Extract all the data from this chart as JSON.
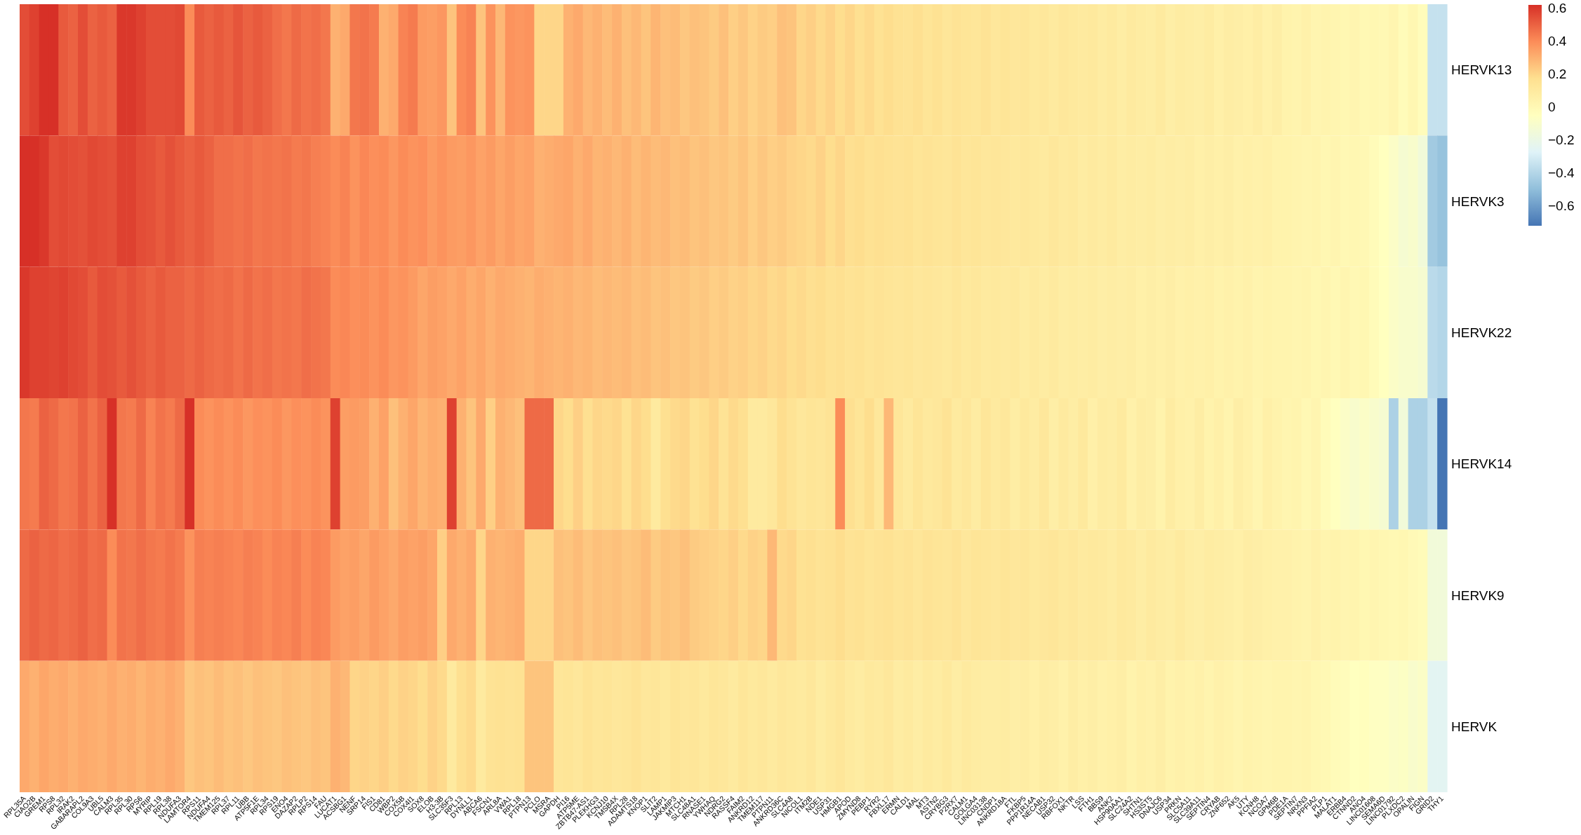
{
  "chart_data": {
    "type": "heatmap",
    "categories": [
      "RPL35A",
      "CIAO2B",
      "GREM1",
      "RPS8",
      "RPL32",
      "IRAK2",
      "GABARAPL2",
      "COL9A3",
      "UBL5",
      "CALM3",
      "RPL35",
      "RPL30",
      "RPS6",
      "MYRIP",
      "RPL19",
      "RPL38",
      "NDUFA3",
      "LAMTOR4",
      "RPS11",
      "NDUFA4",
      "TMEM125",
      "RPL37",
      "RPL11",
      "UBB",
      "ATP5F1E",
      "RPL34",
      "RPS19",
      "ENO4",
      "DAZAP2",
      "RPLP2",
      "RPS14",
      "FAU",
      "LUCAT1",
      "ACSBG1",
      "NENF",
      "SRP14",
      "FIS1",
      "CD81",
      "WBP2",
      "COX5B",
      "COX4I1",
      "SOX8",
      "ELOB",
      "H3-3B",
      "SLC35F3",
      "RPL13",
      "DYNLL1",
      "ABCA6",
      "FSCN1",
      "ARL8A",
      "VWA1",
      "RPL18",
      "PTPN13",
      "PCLO",
      "MSRA",
      "GAPDH",
      "PI16",
      "ATP5ME",
      "ZBTB47-AS1",
      "PLEKHG3",
      "KCNJ10",
      "TMSB4X",
      "RPL28",
      "ADAMTS18",
      "KNOP1",
      "SLIT2",
      "LAMP1",
      "JAKMIP3",
      "MTCH1",
      "SLC48A1",
      "RNASE1",
      "YWHAQ",
      "NDRG2",
      "RASSF4",
      "FAIM2",
      "ANKRD12",
      "TMEM117",
      "PTPN11",
      "ANKRD36C",
      "SLC4A8",
      "NICOL1",
      "ITM2B",
      "NDE1",
      "USP31",
      "HMGB1",
      "APOD",
      "ZMYND8",
      "PEBP1",
      "RYR2",
      "FBXL17",
      "ERMN",
      "CALD1",
      "MAL",
      "MT3",
      "ASTN2",
      "CRYBG3",
      "P2RX7",
      "CALM1",
      "GOLGA4",
      "LINC03138",
      "CNDP1",
      "ANKRD18A",
      "FTL",
      "FKBP5",
      "PPP1R14A",
      "NECAB1",
      "USP32",
      "RBFOX1",
      "NKTR",
      "LSS",
      "FTH1",
      "BBS9",
      "ANK2",
      "HSP90AA1",
      "SLC24A2",
      "SHTN1",
      "HS3ST5",
      "DNAJC6",
      "USP34",
      "PRKN",
      "SLC5A11",
      "SLC39A11",
      "SEPTIN4",
      "CRYAB",
      "ZNF652",
      "AK5",
      "UTY",
      "KCNH8",
      "NCOA7",
      "GPM6B",
      "PDE1A",
      "SEPTIN7",
      "NRXN3",
      "PPFIA2",
      "PLP1",
      "MALAT1",
      "ERBB4",
      "CTNND2",
      "ANO4",
      "LINC01608",
      "SEMA6D",
      "LINC01792",
      "PLXDC2",
      "OPALIN",
      "FIGN",
      "GRID2",
      "THY1"
    ],
    "y_categories": [
      "HERVK13",
      "HERVK3",
      "HERVK22",
      "HERVK14",
      "HERVK9",
      "HERVK"
    ],
    "cells": [
      [
        0.55,
        0.58,
        0.62,
        0.62,
        0.52,
        0.5,
        0.55,
        0.5,
        0.52,
        0.5,
        0.6,
        0.6,
        0.58,
        0.55,
        0.55,
        0.55,
        0.56,
        0.4,
        0.52,
        0.5,
        0.52,
        0.5,
        0.53,
        0.5,
        0.52,
        0.5,
        0.47,
        0.45,
        0.48,
        0.46,
        0.47,
        0.45,
        0.3,
        0.32,
        0.45,
        0.46,
        0.44,
        0.3,
        0.32,
        0.42,
        0.44,
        0.36,
        0.35,
        0.37,
        0.25,
        0.4,
        0.42,
        0.25,
        0.38,
        0.28,
        0.38,
        0.37,
        0.38,
        0.2,
        0.2,
        0.2,
        0.3,
        0.32,
        0.28,
        0.3,
        0.27,
        0.3,
        0.26,
        0.28,
        0.25,
        0.29,
        0.26,
        0.27,
        0.24,
        0.26,
        0.25,
        0.23,
        0.26,
        0.22,
        0.24,
        0.21,
        0.23,
        0.22,
        0.26,
        0.25,
        0.2,
        0.22,
        0.19,
        0.21,
        0.18,
        0.2,
        0.17,
        0.19,
        0.16,
        0.18,
        0.16,
        0.15,
        0.17,
        0.14,
        0.16,
        0.13,
        0.15,
        0.14,
        0.13,
        0.15,
        0.12,
        0.14,
        0.12,
        0.13,
        0.11,
        0.12,
        0.1,
        0.12,
        0.11,
        0.1,
        0.11,
        0.09,
        0.1,
        0.08,
        0.1,
        0.09,
        0.08,
        0.1,
        0.07,
        0.09,
        0.08,
        0.07,
        0.09,
        0.06,
        0.08,
        0.07,
        0.06,
        0.08,
        0.05,
        0.07,
        0.04,
        0.03,
        0.05,
        0.02,
        0.03,
        0.02,
        0.01,
        0.02,
        0.0,
        0.01,
        0.0,
        0.02,
        -0.02,
        0.01,
        -0.03,
        -0.35,
        -0.35
      ],
      [
        0.62,
        0.62,
        0.6,
        0.55,
        0.56,
        0.55,
        0.54,
        0.56,
        0.55,
        0.54,
        0.58,
        0.58,
        0.55,
        0.54,
        0.52,
        0.54,
        0.52,
        0.5,
        0.52,
        0.5,
        0.47,
        0.47,
        0.46,
        0.47,
        0.45,
        0.46,
        0.45,
        0.46,
        0.44,
        0.45,
        0.43,
        0.42,
        0.4,
        0.42,
        0.38,
        0.41,
        0.39,
        0.4,
        0.37,
        0.4,
        0.38,
        0.39,
        0.36,
        0.38,
        0.36,
        0.35,
        0.37,
        0.34,
        0.36,
        0.33,
        0.35,
        0.33,
        0.34,
        0.3,
        0.31,
        0.32,
        0.33,
        0.3,
        0.32,
        0.29,
        0.3,
        0.28,
        0.3,
        0.27,
        0.29,
        0.27,
        0.28,
        0.26,
        0.27,
        0.25,
        0.26,
        0.24,
        0.25,
        0.23,
        0.25,
        0.22,
        0.24,
        0.22,
        0.23,
        0.21,
        0.2,
        0.19,
        0.21,
        0.18,
        0.2,
        0.17,
        0.18,
        0.16,
        0.17,
        0.16,
        0.15,
        0.16,
        0.14,
        0.15,
        0.14,
        0.13,
        0.15,
        0.13,
        0.14,
        0.12,
        0.13,
        0.12,
        0.11,
        0.12,
        0.11,
        0.1,
        0.12,
        0.1,
        0.11,
        0.09,
        0.1,
        0.09,
        0.1,
        0.08,
        0.09,
        0.08,
        0.09,
        0.07,
        0.08,
        0.07,
        0.08,
        0.06,
        0.07,
        0.06,
        0.07,
        0.05,
        0.06,
        0.05,
        0.06,
        0.04,
        0.04,
        0.03,
        0.02,
        0.03,
        0.01,
        0.02,
        0.0,
        0.01,
        0.0,
        -0.02,
        -0.05,
        -0.08,
        -0.12,
        -0.1,
        -0.15,
        -0.45,
        -0.48
      ],
      [
        0.6,
        0.58,
        0.58,
        0.57,
        0.58,
        0.56,
        0.55,
        0.52,
        0.55,
        0.54,
        0.52,
        0.54,
        0.52,
        0.5,
        0.52,
        0.5,
        0.5,
        0.48,
        0.5,
        0.48,
        0.47,
        0.48,
        0.46,
        0.48,
        0.46,
        0.47,
        0.45,
        0.46,
        0.45,
        0.47,
        0.46,
        0.45,
        0.4,
        0.41,
        0.39,
        0.4,
        0.38,
        0.4,
        0.37,
        0.38,
        0.36,
        0.33,
        0.35,
        0.34,
        0.32,
        0.34,
        0.31,
        0.33,
        0.3,
        0.32,
        0.31,
        0.3,
        0.29,
        0.31,
        0.3,
        0.29,
        0.3,
        0.28,
        0.29,
        0.27,
        0.28,
        0.27,
        0.28,
        0.26,
        0.27,
        0.25,
        0.26,
        0.24,
        0.25,
        0.23,
        0.24,
        0.22,
        0.23,
        0.21,
        0.22,
        0.2,
        0.21,
        0.19,
        0.2,
        0.18,
        0.19,
        0.17,
        0.18,
        0.16,
        0.17,
        0.15,
        0.16,
        0.14,
        0.15,
        0.14,
        0.13,
        0.14,
        0.12,
        0.13,
        0.12,
        0.11,
        0.13,
        0.11,
        0.12,
        0.1,
        0.11,
        0.1,
        0.11,
        0.09,
        0.1,
        0.09,
        0.1,
        0.08,
        0.09,
        0.08,
        0.09,
        0.07,
        0.08,
        0.07,
        0.08,
        0.06,
        0.07,
        0.06,
        0.07,
        0.05,
        0.06,
        0.05,
        0.06,
        0.04,
        0.05,
        0.04,
        0.05,
        0.03,
        0.04,
        0.03,
        0.03,
        0.02,
        0.03,
        0.01,
        0.02,
        0.0,
        0.02,
        0.0,
        0.01,
        -0.02,
        -0.05,
        -0.08,
        -0.1,
        -0.1,
        -0.12,
        -0.38,
        -0.4
      ],
      [
        0.45,
        0.44,
        0.5,
        0.48,
        0.45,
        0.46,
        0.5,
        0.46,
        0.5,
        0.62,
        0.45,
        0.44,
        0.48,
        0.42,
        0.46,
        0.44,
        0.48,
        0.62,
        0.4,
        0.38,
        0.4,
        0.38,
        0.4,
        0.37,
        0.39,
        0.38,
        0.4,
        0.37,
        0.39,
        0.38,
        0.4,
        0.38,
        0.58,
        0.35,
        0.36,
        0.35,
        0.3,
        0.34,
        0.26,
        0.3,
        0.33,
        0.29,
        0.31,
        0.3,
        0.58,
        0.3,
        0.25,
        0.32,
        0.22,
        0.3,
        0.28,
        0.26,
        0.48,
        0.48,
        0.48,
        0.2,
        0.18,
        0.22,
        0.17,
        0.2,
        0.19,
        0.2,
        0.16,
        0.2,
        0.18,
        0.1,
        0.17,
        0.19,
        0.2,
        0.16,
        0.18,
        0.2,
        0.15,
        0.19,
        0.17,
        0.1,
        0.1,
        0.12,
        0.18,
        0.15,
        0.12,
        0.14,
        0.13,
        0.15,
        0.4,
        0.17,
        0.14,
        0.18,
        0.12,
        0.28,
        0.13,
        0.1,
        0.14,
        0.11,
        0.12,
        0.15,
        0.1,
        0.12,
        0.09,
        0.13,
        0.1,
        0.12,
        0.08,
        0.11,
        0.09,
        0.12,
        0.07,
        0.1,
        0.08,
        0.11,
        0.06,
        0.09,
        0.08,
        0.1,
        0.05,
        0.08,
        0.07,
        0.04,
        0.09,
        0.06,
        0.05,
        0.08,
        0.04,
        0.06,
        0.03,
        0.07,
        0.05,
        0.02,
        0.06,
        0.04,
        0.02,
        0.03,
        0.0,
        0.02,
        -0.02,
        -0.05,
        -0.08,
        -0.1,
        -0.08,
        -0.1,
        -0.12,
        -0.42,
        -0.15,
        -0.42,
        -0.42,
        -0.35,
        -0.72
      ],
      [
        0.48,
        0.5,
        0.48,
        0.49,
        0.47,
        0.48,
        0.5,
        0.47,
        0.48,
        0.4,
        0.46,
        0.45,
        0.47,
        0.45,
        0.44,
        0.46,
        0.44,
        0.38,
        0.43,
        0.42,
        0.43,
        0.42,
        0.41,
        0.43,
        0.42,
        0.4,
        0.42,
        0.41,
        0.43,
        0.4,
        0.42,
        0.41,
        0.36,
        0.34,
        0.35,
        0.33,
        0.36,
        0.34,
        0.32,
        0.35,
        0.34,
        0.35,
        0.33,
        0.22,
        0.32,
        0.3,
        0.32,
        0.2,
        0.3,
        0.29,
        0.3,
        0.31,
        0.2,
        0.2,
        0.2,
        0.26,
        0.25,
        0.27,
        0.24,
        0.26,
        0.25,
        0.26,
        0.24,
        0.25,
        0.27,
        0.23,
        0.25,
        0.24,
        0.26,
        0.23,
        0.22,
        0.21,
        0.2,
        0.22,
        0.19,
        0.21,
        0.2,
        0.28,
        0.19,
        0.2,
        0.16,
        0.17,
        0.15,
        0.16,
        0.18,
        0.15,
        0.16,
        0.14,
        0.15,
        0.16,
        0.14,
        0.15,
        0.13,
        0.15,
        0.14,
        0.13,
        0.15,
        0.12,
        0.14,
        0.13,
        0.12,
        0.14,
        0.12,
        0.13,
        0.11,
        0.12,
        0.13,
        0.11,
        0.12,
        0.1,
        0.11,
        0.1,
        0.09,
        0.11,
        0.1,
        0.08,
        0.1,
        0.09,
        0.08,
        0.1,
        0.08,
        0.07,
        0.09,
        0.08,
        0.07,
        0.06,
        0.08,
        0.07,
        0.06,
        0.05,
        0.05,
        0.04,
        0.03,
        0.05,
        0.03,
        0.04,
        0.02,
        0.03,
        0.01,
        0.02,
        0.01,
        0.0,
        0.01,
        -0.01,
        -0.02,
        -0.15,
        -0.15
      ],
      [
        0.32,
        0.3,
        0.33,
        0.31,
        0.32,
        0.3,
        0.32,
        0.31,
        0.3,
        0.32,
        0.3,
        0.31,
        0.29,
        0.31,
        0.3,
        0.32,
        0.3,
        0.24,
        0.26,
        0.25,
        0.27,
        0.25,
        0.26,
        0.24,
        0.26,
        0.25,
        0.24,
        0.26,
        0.25,
        0.24,
        0.26,
        0.25,
        0.3,
        0.28,
        0.2,
        0.21,
        0.2,
        0.22,
        0.19,
        0.21,
        0.2,
        0.18,
        0.21,
        0.19,
        0.1,
        0.17,
        0.19,
        0.1,
        0.15,
        0.16,
        0.15,
        0.16,
        0.25,
        0.25,
        0.25,
        0.13,
        0.14,
        0.12,
        0.15,
        0.13,
        0.14,
        0.12,
        0.13,
        0.15,
        0.12,
        0.13,
        0.11,
        0.14,
        0.12,
        0.13,
        0.11,
        0.13,
        0.12,
        0.1,
        0.13,
        0.11,
        0.12,
        0.1,
        0.12,
        0.11,
        0.1,
        0.12,
        0.09,
        0.11,
        0.13,
        0.1,
        0.09,
        0.11,
        0.1,
        0.12,
        0.09,
        0.1,
        0.08,
        0.1,
        0.09,
        0.11,
        0.08,
        0.1,
        0.09,
        0.08,
        0.08,
        0.09,
        0.07,
        0.08,
        0.06,
        0.08,
        0.07,
        0.05,
        0.08,
        0.06,
        0.07,
        0.05,
        0.06,
        0.07,
        0.04,
        0.06,
        0.05,
        0.07,
        0.04,
        0.05,
        0.04,
        0.05,
        0.03,
        0.05,
        0.04,
        0.02,
        0.04,
        0.03,
        0.02,
        0.03,
        0.03,
        0.02,
        0.03,
        0.01,
        0.0,
        -0.02,
        -0.03,
        -0.05,
        -0.04,
        -0.06,
        -0.06,
        -0.08,
        -0.07,
        -0.1,
        -0.08,
        -0.25,
        -0.25
      ]
    ],
    "clim": [
      -0.72,
      0.62
    ],
    "cticks": [
      0.6,
      0.4,
      0.2,
      0,
      {
        "value": -0.2,
        "label": "−0.2"
      },
      {
        "value": -0.4,
        "label": "−0.4"
      },
      {
        "value": -0.6,
        "label": "−0.6"
      }
    ]
  }
}
